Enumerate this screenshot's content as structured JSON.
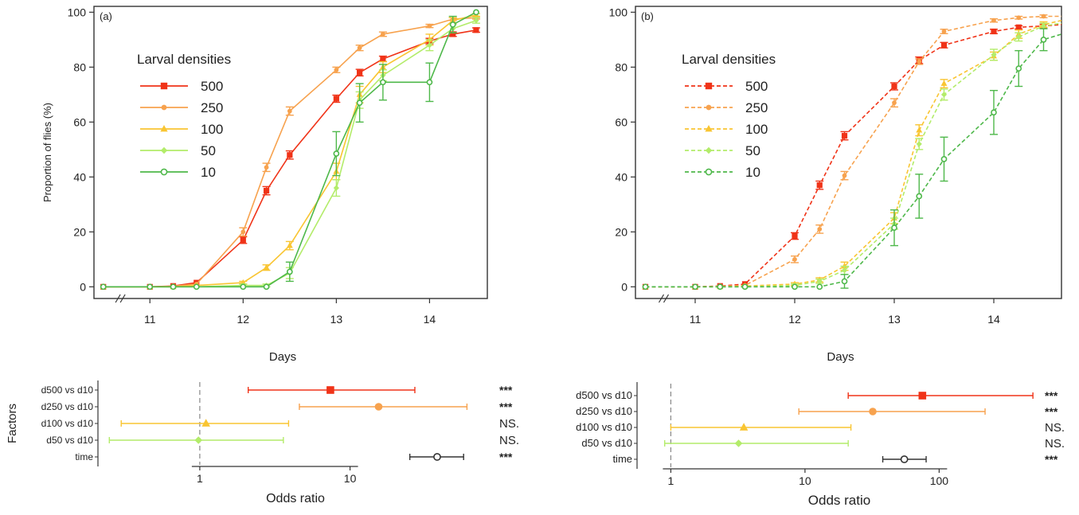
{
  "chart_data": [
    {
      "type": "line",
      "panel_label": "(a)",
      "xlabel": "Days",
      "ylabel": "Proportion of flies (%)",
      "ylim": [
        0,
        100
      ],
      "xlim": [
        10.4,
        14.62
      ],
      "x_ticks": [
        11,
        12,
        13,
        14
      ],
      "y_ticks": [
        0,
        20,
        40,
        60,
        80,
        100
      ],
      "axis_break": true,
      "line_style": "solid",
      "legend_title": "Larval densities",
      "legend_position": "upper-left",
      "series": [
        {
          "name": "500",
          "color": "#f03318",
          "marker": "square",
          "x": [
            10.5,
            11,
            11.25,
            11.5,
            12,
            12.25,
            12.5,
            13,
            13.25,
            13.5,
            14,
            14.25,
            14.5
          ],
          "y": [
            0,
            0,
            0.3,
            1.5,
            17,
            35,
            48,
            68.5,
            78,
            83,
            89.5,
            92,
            93.5
          ],
          "err": [
            0,
            0,
            0,
            0,
            1.2,
            1.5,
            1.5,
            1.3,
            1.2,
            1,
            1,
            0.8,
            0.8
          ]
        },
        {
          "name": "250",
          "color": "#f7a24e",
          "marker": "circle-small",
          "x": [
            10.5,
            11,
            11.25,
            11.5,
            12,
            12.25,
            12.5,
            13,
            13.25,
            13.5,
            14,
            14.25,
            14.5
          ],
          "y": [
            0,
            0,
            0.2,
            1,
            20,
            43.5,
            64,
            79,
            87,
            92,
            95,
            97.5,
            98
          ],
          "err": [
            0,
            0,
            0,
            0,
            1.5,
            1.5,
            1.5,
            1,
            1,
            0.8,
            0.6,
            0.5,
            0.5
          ]
        },
        {
          "name": "100",
          "color": "#f9c532",
          "marker": "triangle",
          "x": [
            10.5,
            11,
            11.25,
            11.5,
            12,
            12.25,
            12.5,
            13,
            13.25,
            13.5,
            14,
            14.25,
            14.5
          ],
          "y": [
            0,
            0,
            0,
            0.5,
            1.5,
            7,
            15,
            42,
            70,
            80,
            90,
            97,
            99
          ],
          "err": [
            0,
            0,
            0,
            0,
            0.5,
            1,
            1.5,
            3,
            3,
            2,
            2,
            1,
            0.5
          ]
        },
        {
          "name": "50",
          "color": "#b3ec6a",
          "marker": "diamond",
          "x": [
            10.5,
            11,
            11.25,
            11.5,
            12,
            12.25,
            12.5,
            13,
            13.25,
            13.5,
            14,
            14.25,
            14.5
          ],
          "y": [
            0,
            0,
            0,
            0,
            0.5,
            0.5,
            5,
            36,
            68,
            77,
            88,
            94,
            97
          ],
          "err": [
            0,
            0,
            0,
            0,
            0.5,
            0.5,
            2,
            3,
            3,
            2,
            2,
            1.5,
            1
          ]
        },
        {
          "name": "10",
          "color": "#4eb84a",
          "marker": "open-circle",
          "x": [
            10.5,
            11,
            11.25,
            11.5,
            12,
            12.25,
            12.5,
            13,
            13.25,
            13.5,
            14,
            14.25,
            14.5
          ],
          "y": [
            0,
            0,
            0,
            0,
            0,
            0,
            5.5,
            48.5,
            67,
            74.5,
            74.5,
            95.5,
            100
          ],
          "err": [
            0,
            0,
            0,
            0,
            0,
            0,
            3.5,
            8,
            7,
            6.5,
            7,
            3,
            0
          ]
        }
      ]
    },
    {
      "type": "line",
      "panel_label": "(b)",
      "xlabel": "Days",
      "ylabel": "",
      "ylim": [
        0,
        100
      ],
      "xlim": [
        10.4,
        14.68
      ],
      "x_ticks": [
        11,
        12,
        13,
        14
      ],
      "y_ticks": [
        0,
        20,
        40,
        60,
        80,
        100
      ],
      "axis_break": true,
      "line_style": "dashed",
      "legend_title": "Larval densities",
      "legend_position": "upper-left",
      "series": [
        {
          "name": "500",
          "color": "#f03318",
          "marker": "square",
          "x": [
            10.5,
            11,
            11.25,
            11.5,
            12,
            12.25,
            12.5,
            13,
            13.25,
            13.5,
            14,
            14.25,
            14.5,
            14.68
          ],
          "y": [
            0,
            0,
            0.3,
            1,
            18.5,
            37,
            55,
            73,
            82.5,
            88,
            93,
            94.5,
            95,
            95.5
          ],
          "err": [
            0,
            0,
            0,
            0,
            1.2,
            1.5,
            1.5,
            1.3,
            1.2,
            1,
            0.8,
            0.6,
            0.6,
            0
          ]
        },
        {
          "name": "250",
          "color": "#f7a24e",
          "marker": "circle-small",
          "x": [
            10.5,
            11,
            11.25,
            11.5,
            12,
            12.25,
            12.5,
            13,
            13.25,
            13.5,
            14,
            14.25,
            14.5,
            14.68
          ],
          "y": [
            0,
            0,
            0.2,
            0.5,
            10,
            21,
            40.5,
            67,
            82,
            93,
            97,
            98,
            98.5,
            98.5
          ],
          "err": [
            0,
            0,
            0,
            0,
            1.2,
            1.5,
            1.5,
            1.5,
            1,
            0.8,
            0.6,
            0.5,
            0.5,
            0
          ]
        },
        {
          "name": "100",
          "color": "#f9c532",
          "marker": "triangle",
          "x": [
            10.5,
            11,
            11.25,
            11.5,
            12,
            12.25,
            12.5,
            13,
            13.25,
            13.5,
            14,
            14.25,
            14.5,
            14.68
          ],
          "y": [
            0,
            0,
            0,
            0.3,
            1,
            2.5,
            7.5,
            25,
            57,
            74,
            84,
            92,
            95.5,
            97
          ],
          "err": [
            0,
            0,
            0,
            0,
            0.5,
            0.8,
            1.5,
            2,
            2,
            1.5,
            1.5,
            1.5,
            1,
            0
          ]
        },
        {
          "name": "50",
          "color": "#b3ec6a",
          "marker": "diamond",
          "x": [
            10.5,
            11,
            11.25,
            11.5,
            12,
            12.25,
            12.5,
            13,
            13.25,
            13.5,
            14,
            14.25,
            14.5,
            14.68
          ],
          "y": [
            0,
            0,
            0,
            0,
            0.5,
            2,
            6,
            23,
            52,
            70,
            84.5,
            91,
            95,
            96
          ],
          "err": [
            0,
            0,
            0,
            0,
            0.5,
            0.8,
            1.5,
            2,
            2,
            2,
            2,
            1.5,
            1,
            0
          ]
        },
        {
          "name": "10",
          "color": "#4eb84a",
          "marker": "open-circle",
          "x": [
            10.5,
            11,
            11.25,
            11.5,
            12,
            12.25,
            12.5,
            13,
            13.25,
            13.5,
            14,
            14.25,
            14.5,
            14.68
          ],
          "y": [
            0,
            0,
            0,
            0,
            0,
            0,
            2,
            21.5,
            33,
            46.5,
            63.5,
            79.5,
            90,
            92
          ],
          "err": [
            0,
            0,
            0,
            0,
            0,
            0,
            2.5,
            6.5,
            8,
            8,
            8,
            6.5,
            4,
            0
          ]
        }
      ]
    },
    {
      "type": "scatter",
      "chart_subtype": "forest",
      "panel_of": "(a)",
      "xlabel": "Odds ratio",
      "ylabel": "Factors",
      "x_scale": "log",
      "xlim": [
        0.21,
        82
      ],
      "x_ticks": [
        1,
        10
      ],
      "reference_line": 1,
      "rows": [
        {
          "label": "d500 vs d10",
          "est": 7.4,
          "lo": 2.1,
          "hi": 27,
          "color": "#f03318",
          "marker": "square",
          "sig": "***"
        },
        {
          "label": "d250 vs d10",
          "est": 15.5,
          "lo": 4.6,
          "hi": 60,
          "color": "#f7a24e",
          "marker": "circle",
          "sig": "***"
        },
        {
          "label": "d100 vs d10",
          "est": 1.1,
          "lo": 0.3,
          "hi": 3.9,
          "color": "#f9c532",
          "marker": "triangle",
          "sig": "NS."
        },
        {
          "label": "d50 vs d10",
          "est": 0.98,
          "lo": 0.25,
          "hi": 3.6,
          "color": "#b3ec6a",
          "marker": "diamond",
          "sig": "NS."
        },
        {
          "label": "time",
          "est": 38,
          "lo": 25,
          "hi": 57,
          "color": "#333333",
          "marker": "open-circle",
          "sig": "***"
        }
      ]
    },
    {
      "type": "scatter",
      "chart_subtype": "forest",
      "panel_of": "(b)",
      "xlabel": "Odds ratio",
      "ylabel": "",
      "x_scale": "log",
      "xlim": [
        0.56,
        520
      ],
      "x_ticks": [
        1,
        10,
        100
      ],
      "reference_line": 1,
      "rows": [
        {
          "label": "d500 vs d10",
          "est": 75,
          "lo": 21,
          "hi": 500,
          "color": "#f03318",
          "marker": "square",
          "sig": "***"
        },
        {
          "label": "d250 vs d10",
          "est": 32,
          "lo": 9,
          "hi": 220,
          "color": "#f7a24e",
          "marker": "circle",
          "sig": "***"
        },
        {
          "label": "d100 vs d10",
          "est": 3.5,
          "lo": 1,
          "hi": 22,
          "color": "#f9c532",
          "marker": "triangle",
          "sig": "NS."
        },
        {
          "label": "d50 vs d10",
          "est": 3.2,
          "lo": 0.9,
          "hi": 21,
          "color": "#b3ec6a",
          "marker": "diamond",
          "sig": "NS."
        },
        {
          "label": "time",
          "est": 55,
          "lo": 38,
          "hi": 80,
          "color": "#333333",
          "marker": "open-circle",
          "sig": "***"
        }
      ]
    }
  ]
}
